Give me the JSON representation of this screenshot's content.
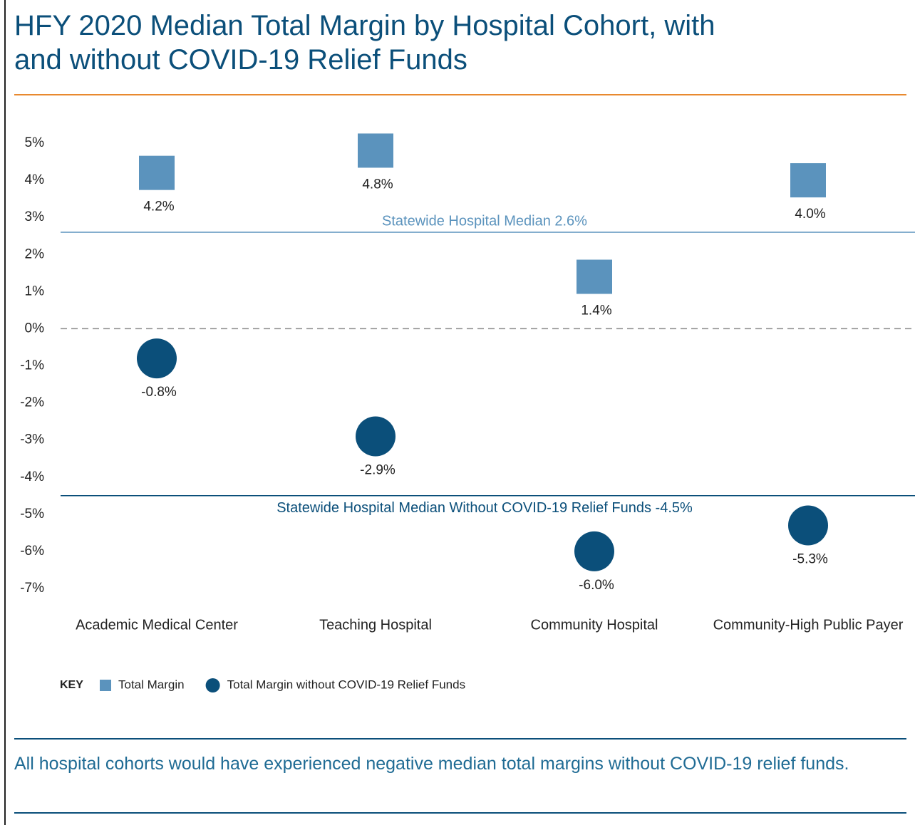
{
  "chart_data": {
    "type": "dot",
    "title": "HFY 2020 Median Total Margin by Hospital Cohort, with and without COVID-19 Relief Funds",
    "categories": [
      "Academic Medical Center",
      "Teaching Hospital",
      "Community Hospital",
      "Community-High Public Payer"
    ],
    "series": [
      {
        "name": "Total Margin",
        "color": "#5b93bd",
        "marker": "square",
        "values": [
          4.2,
          4.8,
          1.4,
          4.0
        ],
        "value_labels": [
          "4.2%",
          "4.8%",
          "1.4%",
          "4.0%"
        ]
      },
      {
        "name": "Total Margin without COVID-19 Relief Funds",
        "color": "#0b4f7a",
        "marker": "circle",
        "values": [
          -0.8,
          -2.9,
          -6.0,
          -5.3
        ],
        "value_labels": [
          "-0.8%",
          "-2.9%",
          "-6.0%",
          "-5.3%"
        ]
      }
    ],
    "ylim": [
      -7,
      5
    ],
    "yticks": [
      {
        "value": 5,
        "label": "5%"
      },
      {
        "value": 4,
        "label": "4%"
      },
      {
        "value": 3,
        "label": "3%"
      },
      {
        "value": 2,
        "label": "2%"
      },
      {
        "value": 1,
        "label": "1%"
      },
      {
        "value": 0,
        "label": "0%"
      },
      {
        "value": -1,
        "label": "-1%"
      },
      {
        "value": -2,
        "label": "-2%"
      },
      {
        "value": -3,
        "label": "-3%"
      },
      {
        "value": -4,
        "label": "-4%"
      },
      {
        "value": -5,
        "label": "-5%"
      },
      {
        "value": -6,
        "label": "-6%"
      },
      {
        "value": -7,
        "label": "-7%"
      }
    ],
    "grid": false,
    "zero_line": "dashed",
    "reference_lines": [
      {
        "value": 2.6,
        "label": "Statewide Hospital Median 2.6%",
        "color": "#5b93bd",
        "label_position": "above"
      },
      {
        "value": -4.5,
        "label": "Statewide Hospital Median Without COVID-19 Relief Funds -4.5%",
        "color": "#0b4f7a",
        "label_position": "below"
      }
    ],
    "legend_title": "KEY",
    "legend": "bottom-left",
    "footnote": "All hospital cohorts would have experienced negative median total margins without COVID-19 relief funds."
  }
}
